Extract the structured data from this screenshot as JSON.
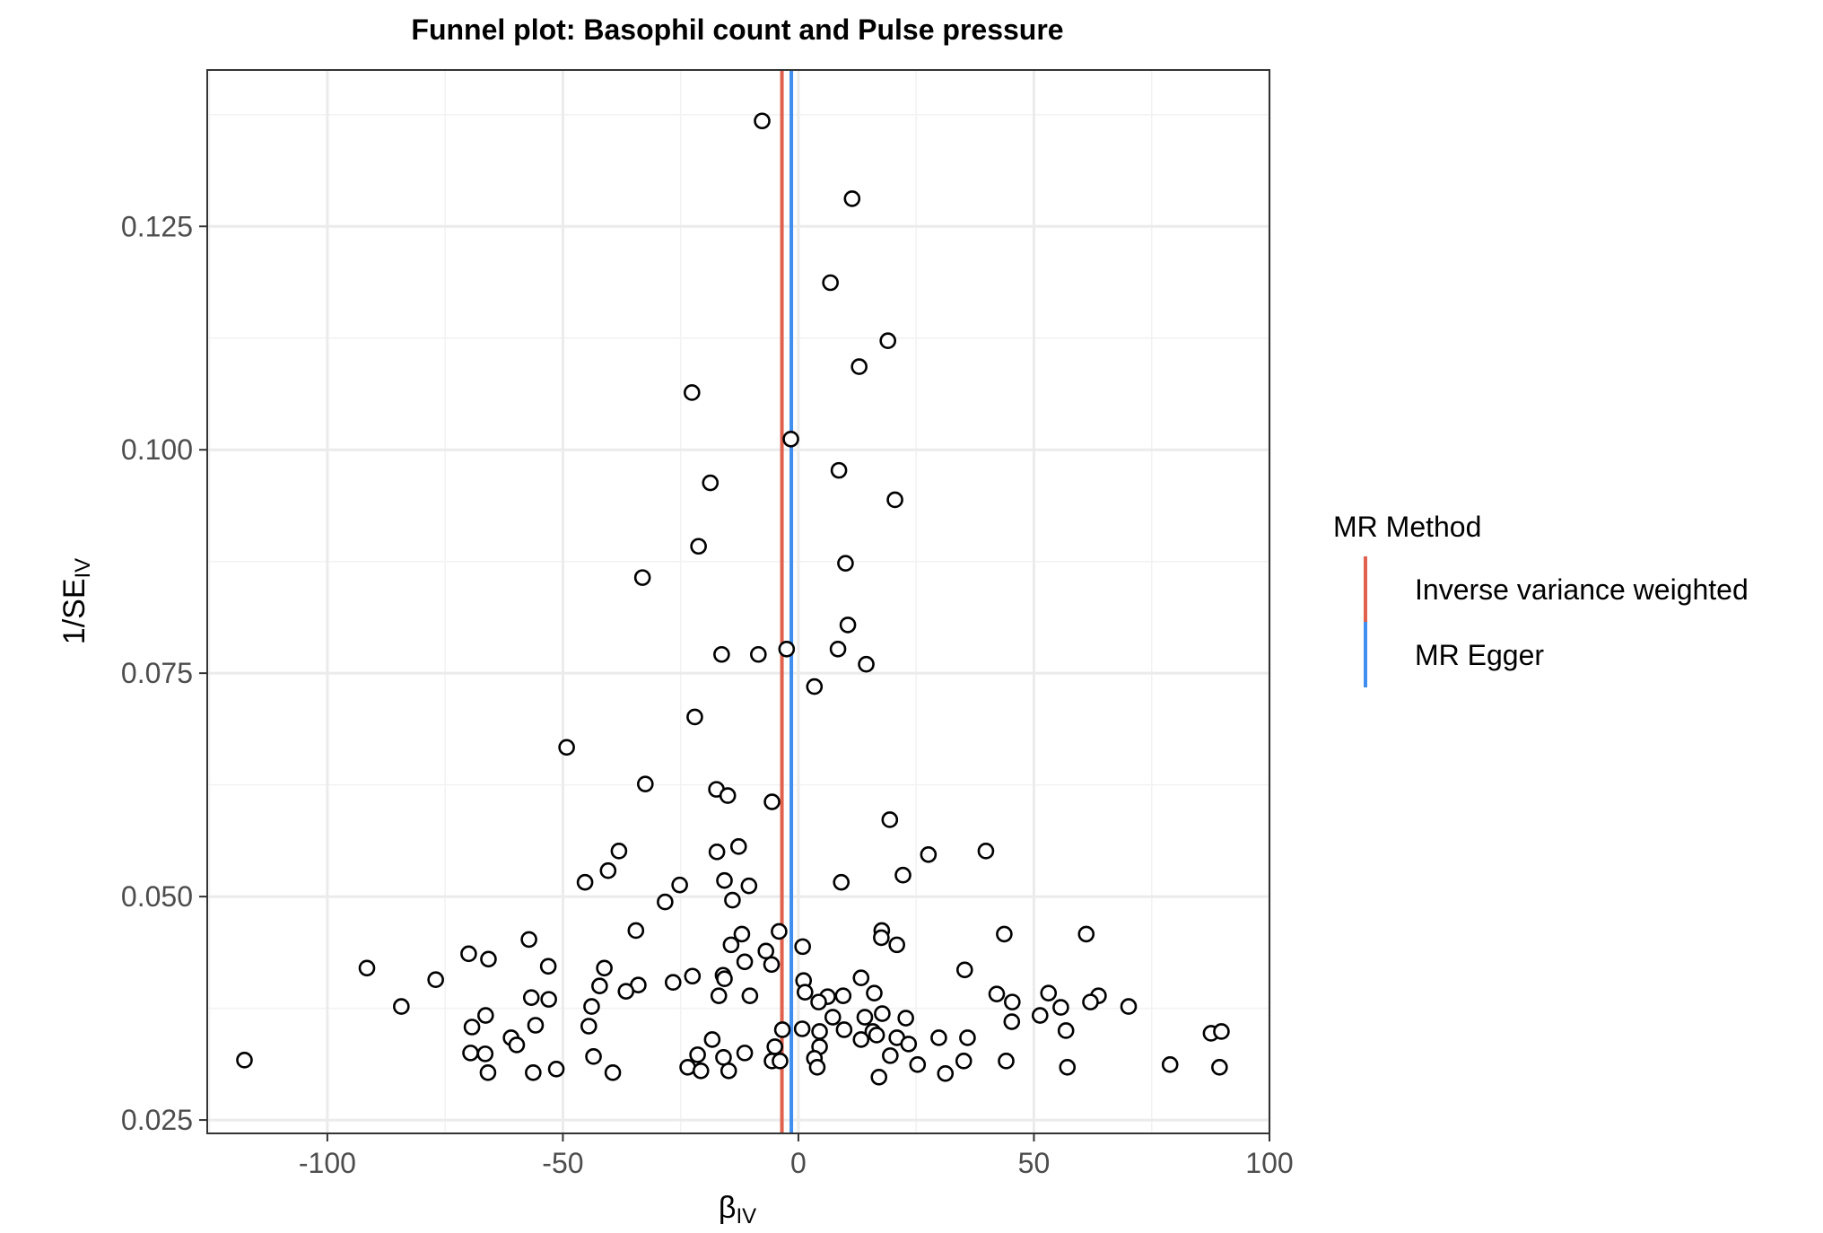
{
  "chart_data": {
    "type": "scatter",
    "title": "Funnel plot: Basophil count and Pulse pressure",
    "xlabel": {
      "main": "β",
      "sub": "IV"
    },
    "ylabel": {
      "main": "1/SE",
      "sub": "IV"
    },
    "xlim": [
      -125.5,
      100
    ],
    "ylim": [
      0.0235,
      0.1425
    ],
    "x_ticks": [
      -100,
      -50,
      0,
      50,
      100
    ],
    "x_tick_labels": [
      "-100",
      "-50",
      "0",
      "50",
      "100"
    ],
    "y_ticks": [
      0.025,
      0.05,
      0.075,
      0.1,
      0.125
    ],
    "y_tick_labels": [
      "0.025",
      "0.050",
      "0.075",
      "0.100",
      "0.125"
    ],
    "grid": true,
    "legend": {
      "title": "MR Method",
      "position": "right",
      "items": [
        {
          "label": "Inverse variance weighted",
          "color": "#E0614E"
        },
        {
          "label": "MR Egger",
          "color": "#3F8EF0"
        }
      ]
    },
    "vlines": [
      {
        "name": "Inverse variance weighted",
        "x": -3.5,
        "color": "#E0614E"
      },
      {
        "name": "MR Egger",
        "x": -1.5,
        "color": "#3F8EF0"
      }
    ],
    "points": [
      [
        -7.7,
        0.1368
      ],
      [
        11.4,
        0.1281
      ],
      [
        6.8,
        0.1187
      ],
      [
        19.0,
        0.1122
      ],
      [
        12.9,
        0.1093
      ],
      [
        -22.6,
        0.1064
      ],
      [
        -1.6,
        0.1012
      ],
      [
        8.6,
        0.0977
      ],
      [
        -18.7,
        0.0963
      ],
      [
        20.5,
        0.0944
      ],
      [
        -21.2,
        0.0892
      ],
      [
        10.0,
        0.0873
      ],
      [
        -33.1,
        0.0857
      ],
      [
        10.5,
        0.0804
      ],
      [
        -2.5,
        0.0777
      ],
      [
        8.4,
        0.0777
      ],
      [
        -16.3,
        0.0771
      ],
      [
        -8.5,
        0.0771
      ],
      [
        14.4,
        0.076
      ],
      [
        3.4,
        0.0735
      ],
      [
        -22.0,
        0.0701
      ],
      [
        -49.2,
        0.0667
      ],
      [
        -32.5,
        0.0626
      ],
      [
        -17.4,
        0.062
      ],
      [
        -15.0,
        0.0613
      ],
      [
        -5.6,
        0.0606
      ],
      [
        19.4,
        0.0586
      ],
      [
        -17.3,
        0.055
      ],
      [
        -12.7,
        0.0556
      ],
      [
        -38.1,
        0.0551
      ],
      [
        27.6,
        0.0547
      ],
      [
        39.8,
        0.0551
      ],
      [
        -40.4,
        0.0529
      ],
      [
        -45.3,
        0.0516
      ],
      [
        -15.7,
        0.0518
      ],
      [
        -10.5,
        0.0512
      ],
      [
        9.1,
        0.0516
      ],
      [
        22.2,
        0.0524
      ],
      [
        -25.2,
        0.0513
      ],
      [
        -14.0,
        0.0496
      ],
      [
        -28.3,
        0.0494
      ],
      [
        -34.5,
        0.0462
      ],
      [
        -4.1,
        0.0461
      ],
      [
        17.7,
        0.0462
      ],
      [
        -57.2,
        0.0452
      ],
      [
        -12.0,
        0.0458
      ],
      [
        43.7,
        0.0458
      ],
      [
        61.1,
        0.0458
      ],
      [
        -14.3,
        0.0446
      ],
      [
        -6.9,
        0.0439
      ],
      [
        0.9,
        0.0444
      ],
      [
        17.6,
        0.0454
      ],
      [
        20.9,
        0.0446
      ],
      [
        -70.0,
        0.0436
      ],
      [
        -65.8,
        0.043
      ],
      [
        -53.1,
        0.0422
      ],
      [
        -41.2,
        0.042
      ],
      [
        -11.4,
        0.0427
      ],
      [
        -5.7,
        0.0424
      ],
      [
        35.3,
        0.0418
      ],
      [
        -91.6,
        0.042
      ],
      [
        -77.0,
        0.0407
      ],
      [
        -22.5,
        0.0411
      ],
      [
        -16.0,
        0.0412
      ],
      [
        -15.7,
        0.0408
      ],
      [
        -26.6,
        0.0404
      ],
      [
        -42.2,
        0.04
      ],
      [
        -34.0,
        0.0401
      ],
      [
        1.1,
        0.0406
      ],
      [
        13.3,
        0.0409
      ],
      [
        -36.6,
        0.0394
      ],
      [
        -16.9,
        0.0389
      ],
      [
        -10.3,
        0.0389
      ],
      [
        1.4,
        0.0393
      ],
      [
        6.2,
        0.0388
      ],
      [
        9.5,
        0.0389
      ],
      [
        16.1,
        0.0392
      ],
      [
        42.1,
        0.0391
      ],
      [
        53.1,
        0.0392
      ],
      [
        63.7,
        0.0389
      ],
      [
        -56.7,
        0.0387
      ],
      [
        -53.0,
        0.0385
      ],
      [
        -43.9,
        0.0377
      ],
      [
        -84.3,
        0.0377
      ],
      [
        4.3,
        0.0382
      ],
      [
        55.7,
        0.0376
      ],
      [
        45.4,
        0.0382
      ],
      [
        62.0,
        0.0382
      ],
      [
        70.1,
        0.0377
      ],
      [
        -66.4,
        0.0367
      ],
      [
        7.3,
        0.0365
      ],
      [
        14.1,
        0.0365
      ],
      [
        17.8,
        0.0369
      ],
      [
        22.8,
        0.0364
      ],
      [
        51.3,
        0.0367
      ],
      [
        45.3,
        0.036
      ],
      [
        -69.3,
        0.0354
      ],
      [
        -55.8,
        0.0356
      ],
      [
        -44.5,
        0.0355
      ],
      [
        0.8,
        0.0352
      ],
      [
        -3.4,
        0.0351
      ],
      [
        4.5,
        0.0349
      ],
      [
        9.7,
        0.0351
      ],
      [
        15.8,
        0.0349
      ],
      [
        16.6,
        0.0345
      ],
      [
        29.8,
        0.0342
      ],
      [
        35.9,
        0.0342
      ],
      [
        56.8,
        0.035
      ],
      [
        87.6,
        0.0347
      ],
      [
        89.8,
        0.0349
      ],
      [
        -61.0,
        0.0342
      ],
      [
        -18.3,
        0.034
      ],
      [
        13.3,
        0.034
      ],
      [
        20.9,
        0.0342
      ],
      [
        -59.8,
        0.0334
      ],
      [
        -5.0,
        0.0332
      ],
      [
        4.5,
        0.0332
      ],
      [
        23.4,
        0.0335
      ],
      [
        -69.6,
        0.0325
      ],
      [
        -66.5,
        0.0324
      ],
      [
        -21.4,
        0.0323
      ],
      [
        -11.4,
        0.0325
      ],
      [
        -43.5,
        0.0321
      ],
      [
        -15.9,
        0.032
      ],
      [
        3.4,
        0.0319
      ],
      [
        19.5,
        0.0322
      ],
      [
        -117.6,
        0.0317
      ],
      [
        -5.6,
        0.0316
      ],
      [
        -3.9,
        0.0316
      ],
      [
        35.1,
        0.0316
      ],
      [
        44.1,
        0.0316
      ],
      [
        -23.5,
        0.0309
      ],
      [
        -20.7,
        0.0305
      ],
      [
        -14.8,
        0.0305
      ],
      [
        4.0,
        0.0309
      ],
      [
        25.3,
        0.0312
      ],
      [
        57.1,
        0.0309
      ],
      [
        78.9,
        0.0312
      ],
      [
        89.4,
        0.0309
      ],
      [
        -65.9,
        0.0303
      ],
      [
        -56.3,
        0.0303
      ],
      [
        -51.4,
        0.0307
      ],
      [
        -39.4,
        0.0303
      ],
      [
        17.1,
        0.0298
      ],
      [
        31.2,
        0.0302
      ]
    ]
  }
}
